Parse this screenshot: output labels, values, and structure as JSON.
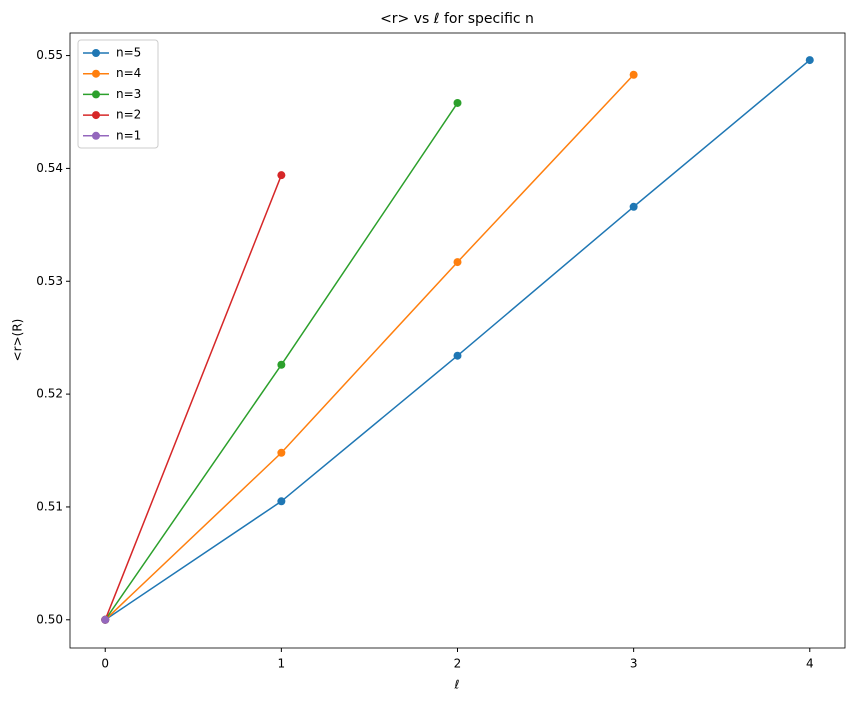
{
  "chart_data": {
    "type": "line",
    "title": "<r> vs ℓ for specific n",
    "x_label": "ℓ",
    "y_label": "<r>(R)",
    "series": [
      {
        "name": "n=5",
        "color": "#1f77b4",
        "x": [
          0,
          1,
          2,
          3,
          4
        ],
        "values": [
          0.5,
          0.5105,
          0.5234,
          0.5366,
          0.5496
        ]
      },
      {
        "name": "n=4",
        "color": "#ff7f0e",
        "x": [
          0,
          1,
          2,
          3
        ],
        "values": [
          0.5,
          0.5148,
          0.5317,
          0.5483
        ]
      },
      {
        "name": "n=3",
        "color": "#2ca02c",
        "x": [
          0,
          1,
          2
        ],
        "values": [
          0.5,
          0.5226,
          0.5458
        ]
      },
      {
        "name": "n=2",
        "color": "#d62728",
        "x": [
          0,
          1
        ],
        "values": [
          0.5,
          0.5394
        ]
      },
      {
        "name": "n=1",
        "color": "#9467bd",
        "x": [
          0
        ],
        "values": [
          0.5
        ]
      }
    ],
    "xlim": [
      -0.2,
      4.2
    ],
    "ylim": [
      0.4975,
      0.552
    ],
    "xticks": [
      0,
      1,
      2,
      3,
      4
    ],
    "yticks": [
      {
        "value": 0.5,
        "label": "0.50"
      },
      0.51,
      0.52,
      0.53,
      0.54,
      0.55
    ],
    "grid": false,
    "legend": "upper-left"
  }
}
